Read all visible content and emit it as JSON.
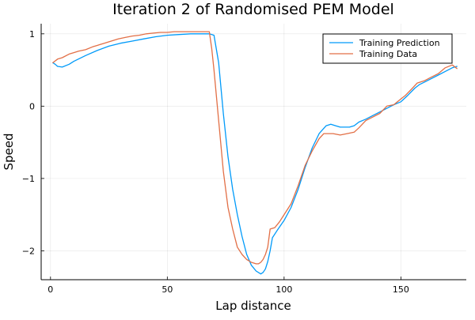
{
  "chart_data": {
    "type": "line",
    "title": "Iteration 2 of Randomised PEM Model",
    "xlabel": "Lap distance",
    "ylabel": "Speed",
    "xlim": [
      -4,
      178
    ],
    "ylim": [
      -2.4,
      1.14
    ],
    "grid": true,
    "legend_position": "top-right",
    "x_ticks": [
      0,
      50,
      100,
      150
    ],
    "x_tick_labels": [
      "0",
      "50",
      "100",
      "150"
    ],
    "y_ticks": [
      -2,
      -1,
      0,
      1
    ],
    "y_tick_labels": [
      "−2",
      "−1",
      "0",
      "1"
    ],
    "series": [
      {
        "name": "Training Prediction",
        "color": "#009af9",
        "x": [
          1,
          2,
          3,
          5,
          8,
          10,
          15,
          20,
          25,
          30,
          35,
          40,
          45,
          50,
          55,
          60,
          64,
          66,
          68,
          70,
          72,
          74,
          76,
          78,
          80,
          82,
          84,
          86,
          88,
          90,
          91,
          92,
          93,
          94,
          95,
          97,
          100,
          103,
          106,
          109,
          112,
          115,
          118,
          120,
          122,
          124,
          126,
          128,
          130,
          132,
          135,
          138,
          141,
          144,
          147,
          150,
          153,
          156,
          158,
          160,
          163,
          166,
          169,
          172,
          174
        ],
        "y": [
          0.6,
          0.58,
          0.55,
          0.54,
          0.58,
          0.62,
          0.7,
          0.77,
          0.83,
          0.87,
          0.9,
          0.93,
          0.96,
          0.98,
          0.99,
          1.0,
          1.0,
          1.0,
          1.0,
          0.98,
          0.6,
          -0.1,
          -0.7,
          -1.15,
          -1.5,
          -1.8,
          -2.05,
          -2.2,
          -2.28,
          -2.32,
          -2.3,
          -2.25,
          -2.15,
          -2.0,
          -1.82,
          -1.72,
          -1.58,
          -1.4,
          -1.15,
          -0.85,
          -0.58,
          -0.38,
          -0.27,
          -0.25,
          -0.27,
          -0.29,
          -0.29,
          -0.29,
          -0.27,
          -0.22,
          -0.18,
          -0.13,
          -0.08,
          -0.03,
          0.02,
          0.06,
          0.15,
          0.25,
          0.3,
          0.33,
          0.38,
          0.43,
          0.48,
          0.53,
          0.55
        ]
      },
      {
        "name": "Training Data",
        "color": "#e26f46",
        "x": [
          1,
          3,
          5,
          8,
          10,
          12,
          15,
          18,
          20,
          23,
          26,
          29,
          32,
          35,
          38,
          41,
          44,
          47,
          50,
          53,
          56,
          60,
          64,
          67,
          68,
          69,
          70,
          72,
          74,
          76,
          78,
          80,
          82,
          84,
          86,
          88,
          89,
          90,
          91,
          92,
          93,
          94,
          96,
          98,
          100,
          103,
          106,
          109,
          112,
          115,
          117,
          119,
          121,
          124,
          127,
          130,
          132,
          135,
          138,
          141,
          144,
          147,
          150,
          152,
          155,
          157,
          160,
          163,
          166,
          169,
          172,
          174
        ],
        "y": [
          0.6,
          0.65,
          0.67,
          0.72,
          0.74,
          0.76,
          0.78,
          0.82,
          0.84,
          0.87,
          0.9,
          0.93,
          0.95,
          0.97,
          0.98,
          1.0,
          1.01,
          1.02,
          1.02,
          1.03,
          1.03,
          1.03,
          1.03,
          1.03,
          1.03,
          0.8,
          0.5,
          -0.2,
          -0.9,
          -1.4,
          -1.7,
          -1.95,
          -2.05,
          -2.12,
          -2.16,
          -2.18,
          -2.18,
          -2.16,
          -2.12,
          -2.05,
          -1.95,
          -1.7,
          -1.68,
          -1.6,
          -1.5,
          -1.35,
          -1.1,
          -0.82,
          -0.62,
          -0.45,
          -0.38,
          -0.38,
          -0.38,
          -0.4,
          -0.38,
          -0.36,
          -0.3,
          -0.2,
          -0.15,
          -0.1,
          0.0,
          0.02,
          0.1,
          0.15,
          0.25,
          0.32,
          0.35,
          0.4,
          0.45,
          0.53,
          0.57,
          0.52
        ]
      }
    ]
  }
}
